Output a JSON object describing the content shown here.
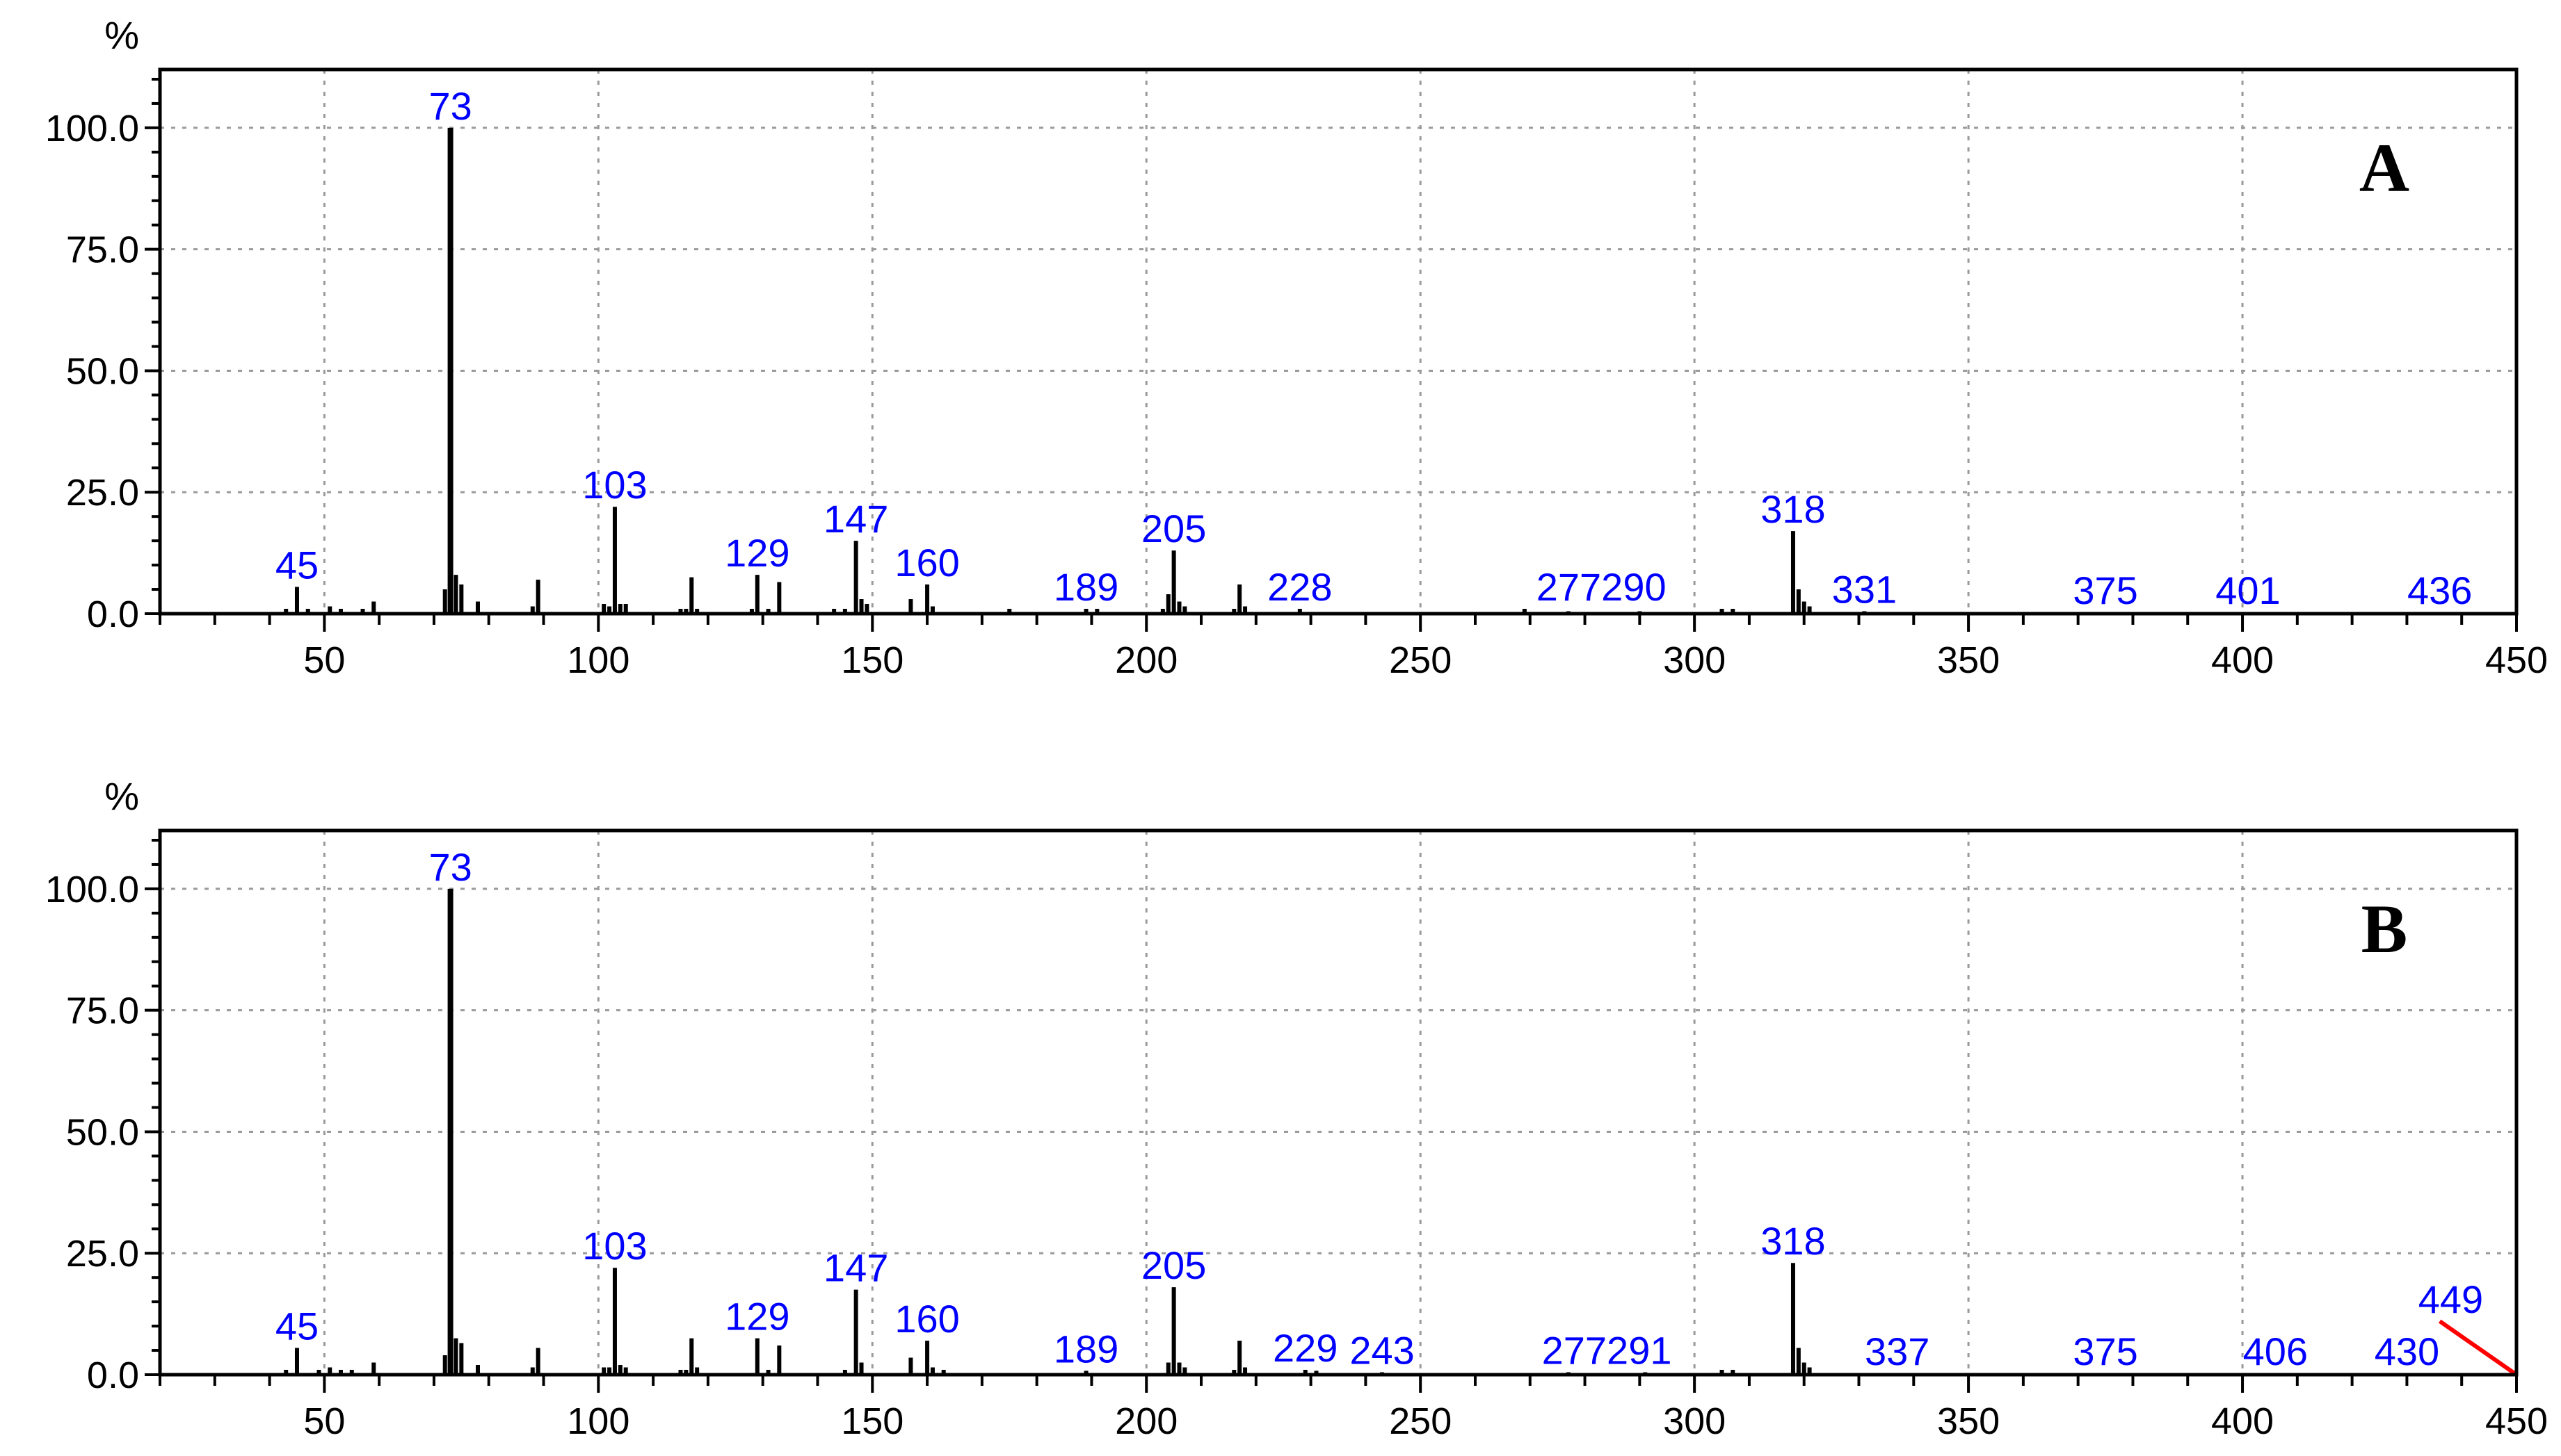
{
  "chart_data": [
    {
      "type": "bar",
      "panel_label": "A",
      "y_unit": "%",
      "xlim": [
        20,
        450
      ],
      "ylim": [
        0,
        112
      ],
      "xticks": [
        50,
        100,
        150,
        200,
        250,
        300,
        350,
        400,
        450
      ],
      "yticks": [
        0.0,
        25.0,
        50.0,
        75.0,
        100.0
      ],
      "ytick_labels": [
        "0.0",
        "25.0",
        "50.0",
        "75.0",
        "100.0"
      ],
      "grid": true,
      "peaks": [
        {
          "mz": 43,
          "intensity": 1.0
        },
        {
          "mz": 45,
          "intensity": 5.5
        },
        {
          "mz": 47,
          "intensity": 1.0
        },
        {
          "mz": 51,
          "intensity": 1.5
        },
        {
          "mz": 53,
          "intensity": 1.0
        },
        {
          "mz": 57,
          "intensity": 1.0
        },
        {
          "mz": 59,
          "intensity": 2.5
        },
        {
          "mz": 72,
          "intensity": 5.0
        },
        {
          "mz": 73,
          "intensity": 100.0
        },
        {
          "mz": 74,
          "intensity": 8.0
        },
        {
          "mz": 75,
          "intensity": 6.0
        },
        {
          "mz": 78,
          "intensity": 2.5
        },
        {
          "mz": 88,
          "intensity": 1.5
        },
        {
          "mz": 89,
          "intensity": 7.0
        },
        {
          "mz": 101,
          "intensity": 2.0
        },
        {
          "mz": 102,
          "intensity": 1.5
        },
        {
          "mz": 103,
          "intensity": 22.0
        },
        {
          "mz": 104,
          "intensity": 2.0
        },
        {
          "mz": 105,
          "intensity": 2.0
        },
        {
          "mz": 115,
          "intensity": 1.0
        },
        {
          "mz": 116,
          "intensity": 1.0
        },
        {
          "mz": 117,
          "intensity": 7.5
        },
        {
          "mz": 118,
          "intensity": 1.0
        },
        {
          "mz": 128,
          "intensity": 1.0
        },
        {
          "mz": 129,
          "intensity": 8.0
        },
        {
          "mz": 131,
          "intensity": 1.0
        },
        {
          "mz": 133,
          "intensity": 6.5
        },
        {
          "mz": 143,
          "intensity": 1.0
        },
        {
          "mz": 145,
          "intensity": 1.0
        },
        {
          "mz": 147,
          "intensity": 15.0
        },
        {
          "mz": 148,
          "intensity": 3.0
        },
        {
          "mz": 149,
          "intensity": 2.0
        },
        {
          "mz": 157,
          "intensity": 3.0
        },
        {
          "mz": 160,
          "intensity": 6.0
        },
        {
          "mz": 161,
          "intensity": 1.5
        },
        {
          "mz": 175,
          "intensity": 1.0
        },
        {
          "mz": 189,
          "intensity": 1.0
        },
        {
          "mz": 191,
          "intensity": 1.0
        },
        {
          "mz": 203,
          "intensity": 1.0
        },
        {
          "mz": 204,
          "intensity": 4.0
        },
        {
          "mz": 205,
          "intensity": 13.0
        },
        {
          "mz": 206,
          "intensity": 2.5
        },
        {
          "mz": 207,
          "intensity": 1.5
        },
        {
          "mz": 216,
          "intensity": 1.0
        },
        {
          "mz": 217,
          "intensity": 6.0
        },
        {
          "mz": 218,
          "intensity": 1.5
        },
        {
          "mz": 228,
          "intensity": 1.0
        },
        {
          "mz": 269,
          "intensity": 1.0
        },
        {
          "mz": 277,
          "intensity": 0.5
        },
        {
          "mz": 290,
          "intensity": 0.5
        },
        {
          "mz": 305,
          "intensity": 1.0
        },
        {
          "mz": 307,
          "intensity": 1.0
        },
        {
          "mz": 318,
          "intensity": 17.0
        },
        {
          "mz": 319,
          "intensity": 5.0
        },
        {
          "mz": 320,
          "intensity": 2.5
        },
        {
          "mz": 321,
          "intensity": 1.5
        },
        {
          "mz": 331,
          "intensity": 0.5
        },
        {
          "mz": 375,
          "intensity": 0.3
        },
        {
          "mz": 401,
          "intensity": 0.3
        },
        {
          "mz": 436,
          "intensity": 0.3
        }
      ],
      "peak_labels": [
        {
          "text": "45",
          "mz": 45,
          "intensity": 5.5
        },
        {
          "text": "73",
          "mz": 73,
          "intensity": 100.0
        },
        {
          "text": "103",
          "mz": 103,
          "intensity": 22.0
        },
        {
          "text": "129",
          "mz": 129,
          "intensity": 8.0
        },
        {
          "text": "147",
          "mz": 147,
          "intensity": 15.0
        },
        {
          "text": "160",
          "mz": 160,
          "intensity": 6.0
        },
        {
          "text": "189",
          "mz": 189,
          "intensity": 1.0
        },
        {
          "text": "205",
          "mz": 205,
          "intensity": 13.0
        },
        {
          "text": "228",
          "mz": 228,
          "intensity": 1.0
        },
        {
          "text": "277290",
          "mz": 283,
          "intensity": 1.0
        },
        {
          "text": "318",
          "mz": 318,
          "intensity": 17.0
        },
        {
          "text": "331",
          "mz": 331,
          "intensity": 0.5
        },
        {
          "text": "375",
          "mz": 375,
          "intensity": 0.3
        },
        {
          "text": "401",
          "mz": 401,
          "intensity": 0.3
        },
        {
          "text": "436",
          "mz": 436,
          "intensity": 0.3
        }
      ]
    },
    {
      "type": "bar",
      "panel_label": "B",
      "y_unit": "%",
      "xlim": [
        20,
        450
      ],
      "ylim": [
        0,
        112
      ],
      "xticks": [
        50,
        100,
        150,
        200,
        250,
        300,
        350,
        400,
        450
      ],
      "yticks": [
        0.0,
        25.0,
        50.0,
        75.0,
        100.0
      ],
      "ytick_labels": [
        "0.0",
        "25.0",
        "50.0",
        "75.0",
        "100.0"
      ],
      "grid": true,
      "peaks": [
        {
          "mz": 43,
          "intensity": 1.0
        },
        {
          "mz": 45,
          "intensity": 5.5
        },
        {
          "mz": 49,
          "intensity": 1.0
        },
        {
          "mz": 51,
          "intensity": 1.5
        },
        {
          "mz": 53,
          "intensity": 1.0
        },
        {
          "mz": 55,
          "intensity": 1.0
        },
        {
          "mz": 59,
          "intensity": 2.5
        },
        {
          "mz": 72,
          "intensity": 4.0
        },
        {
          "mz": 73,
          "intensity": 100.0
        },
        {
          "mz": 74,
          "intensity": 7.5
        },
        {
          "mz": 75,
          "intensity": 6.5
        },
        {
          "mz": 78,
          "intensity": 2.0
        },
        {
          "mz": 88,
          "intensity": 1.5
        },
        {
          "mz": 89,
          "intensity": 5.5
        },
        {
          "mz": 101,
          "intensity": 1.5
        },
        {
          "mz": 102,
          "intensity": 1.5
        },
        {
          "mz": 103,
          "intensity": 22.0
        },
        {
          "mz": 104,
          "intensity": 2.0
        },
        {
          "mz": 105,
          "intensity": 1.5
        },
        {
          "mz": 115,
          "intensity": 1.0
        },
        {
          "mz": 116,
          "intensity": 1.0
        },
        {
          "mz": 117,
          "intensity": 7.5
        },
        {
          "mz": 118,
          "intensity": 1.5
        },
        {
          "mz": 129,
          "intensity": 7.5
        },
        {
          "mz": 131,
          "intensity": 1.0
        },
        {
          "mz": 133,
          "intensity": 6.0
        },
        {
          "mz": 145,
          "intensity": 1.0
        },
        {
          "mz": 147,
          "intensity": 17.5
        },
        {
          "mz": 148,
          "intensity": 2.5
        },
        {
          "mz": 157,
          "intensity": 3.5
        },
        {
          "mz": 160,
          "intensity": 7.0
        },
        {
          "mz": 161,
          "intensity": 1.5
        },
        {
          "mz": 163,
          "intensity": 1.0
        },
        {
          "mz": 189,
          "intensity": 0.8
        },
        {
          "mz": 204,
          "intensity": 2.5
        },
        {
          "mz": 205,
          "intensity": 18.0
        },
        {
          "mz": 206,
          "intensity": 2.5
        },
        {
          "mz": 207,
          "intensity": 1.5
        },
        {
          "mz": 216,
          "intensity": 1.0
        },
        {
          "mz": 217,
          "intensity": 7.0
        },
        {
          "mz": 218,
          "intensity": 1.5
        },
        {
          "mz": 229,
          "intensity": 1.0
        },
        {
          "mz": 231,
          "intensity": 0.8
        },
        {
          "mz": 243,
          "intensity": 0.5
        },
        {
          "mz": 277,
          "intensity": 0.5
        },
        {
          "mz": 291,
          "intensity": 0.5
        },
        {
          "mz": 305,
          "intensity": 1.0
        },
        {
          "mz": 307,
          "intensity": 1.0
        },
        {
          "mz": 318,
          "intensity": 23.0
        },
        {
          "mz": 319,
          "intensity": 5.5
        },
        {
          "mz": 320,
          "intensity": 2.5
        },
        {
          "mz": 321,
          "intensity": 1.5
        },
        {
          "mz": 337,
          "intensity": 0.3
        },
        {
          "mz": 375,
          "intensity": 0.3
        },
        {
          "mz": 406,
          "intensity": 0.3
        },
        {
          "mz": 430,
          "intensity": 0.3
        }
      ],
      "peak_labels": [
        {
          "text": "45",
          "mz": 45,
          "intensity": 5.5
        },
        {
          "text": "73",
          "mz": 73,
          "intensity": 100.0
        },
        {
          "text": "103",
          "mz": 103,
          "intensity": 22.0
        },
        {
          "text": "129",
          "mz": 129,
          "intensity": 7.5
        },
        {
          "text": "147",
          "mz": 147,
          "intensity": 17.5
        },
        {
          "text": "160",
          "mz": 160,
          "intensity": 7.0
        },
        {
          "text": "189",
          "mz": 189,
          "intensity": 0.8
        },
        {
          "text": "205",
          "mz": 205,
          "intensity": 18.0
        },
        {
          "text": "229",
          "mz": 229,
          "intensity": 1.0
        },
        {
          "text": "243",
          "mz": 243,
          "intensity": 0.5
        },
        {
          "text": "277291",
          "mz": 284,
          "intensity": 0.5
        },
        {
          "text": "318",
          "mz": 318,
          "intensity": 23.0
        },
        {
          "text": "337",
          "mz": 337,
          "intensity": 0.3
        },
        {
          "text": "375",
          "mz": 375,
          "intensity": 0.3
        },
        {
          "text": "406",
          "mz": 406,
          "intensity": 0.3
        },
        {
          "text": "430",
          "mz": 430,
          "intensity": 0.3
        },
        {
          "text": "449",
          "mz": 438,
          "intensity": 11.0
        }
      ],
      "annotation_lines": [
        {
          "color": "#ff0000",
          "from": {
            "mz": 436,
            "intensity": 11.0
          },
          "to": {
            "mz": 450,
            "intensity": 0.0
          }
        }
      ]
    }
  ]
}
